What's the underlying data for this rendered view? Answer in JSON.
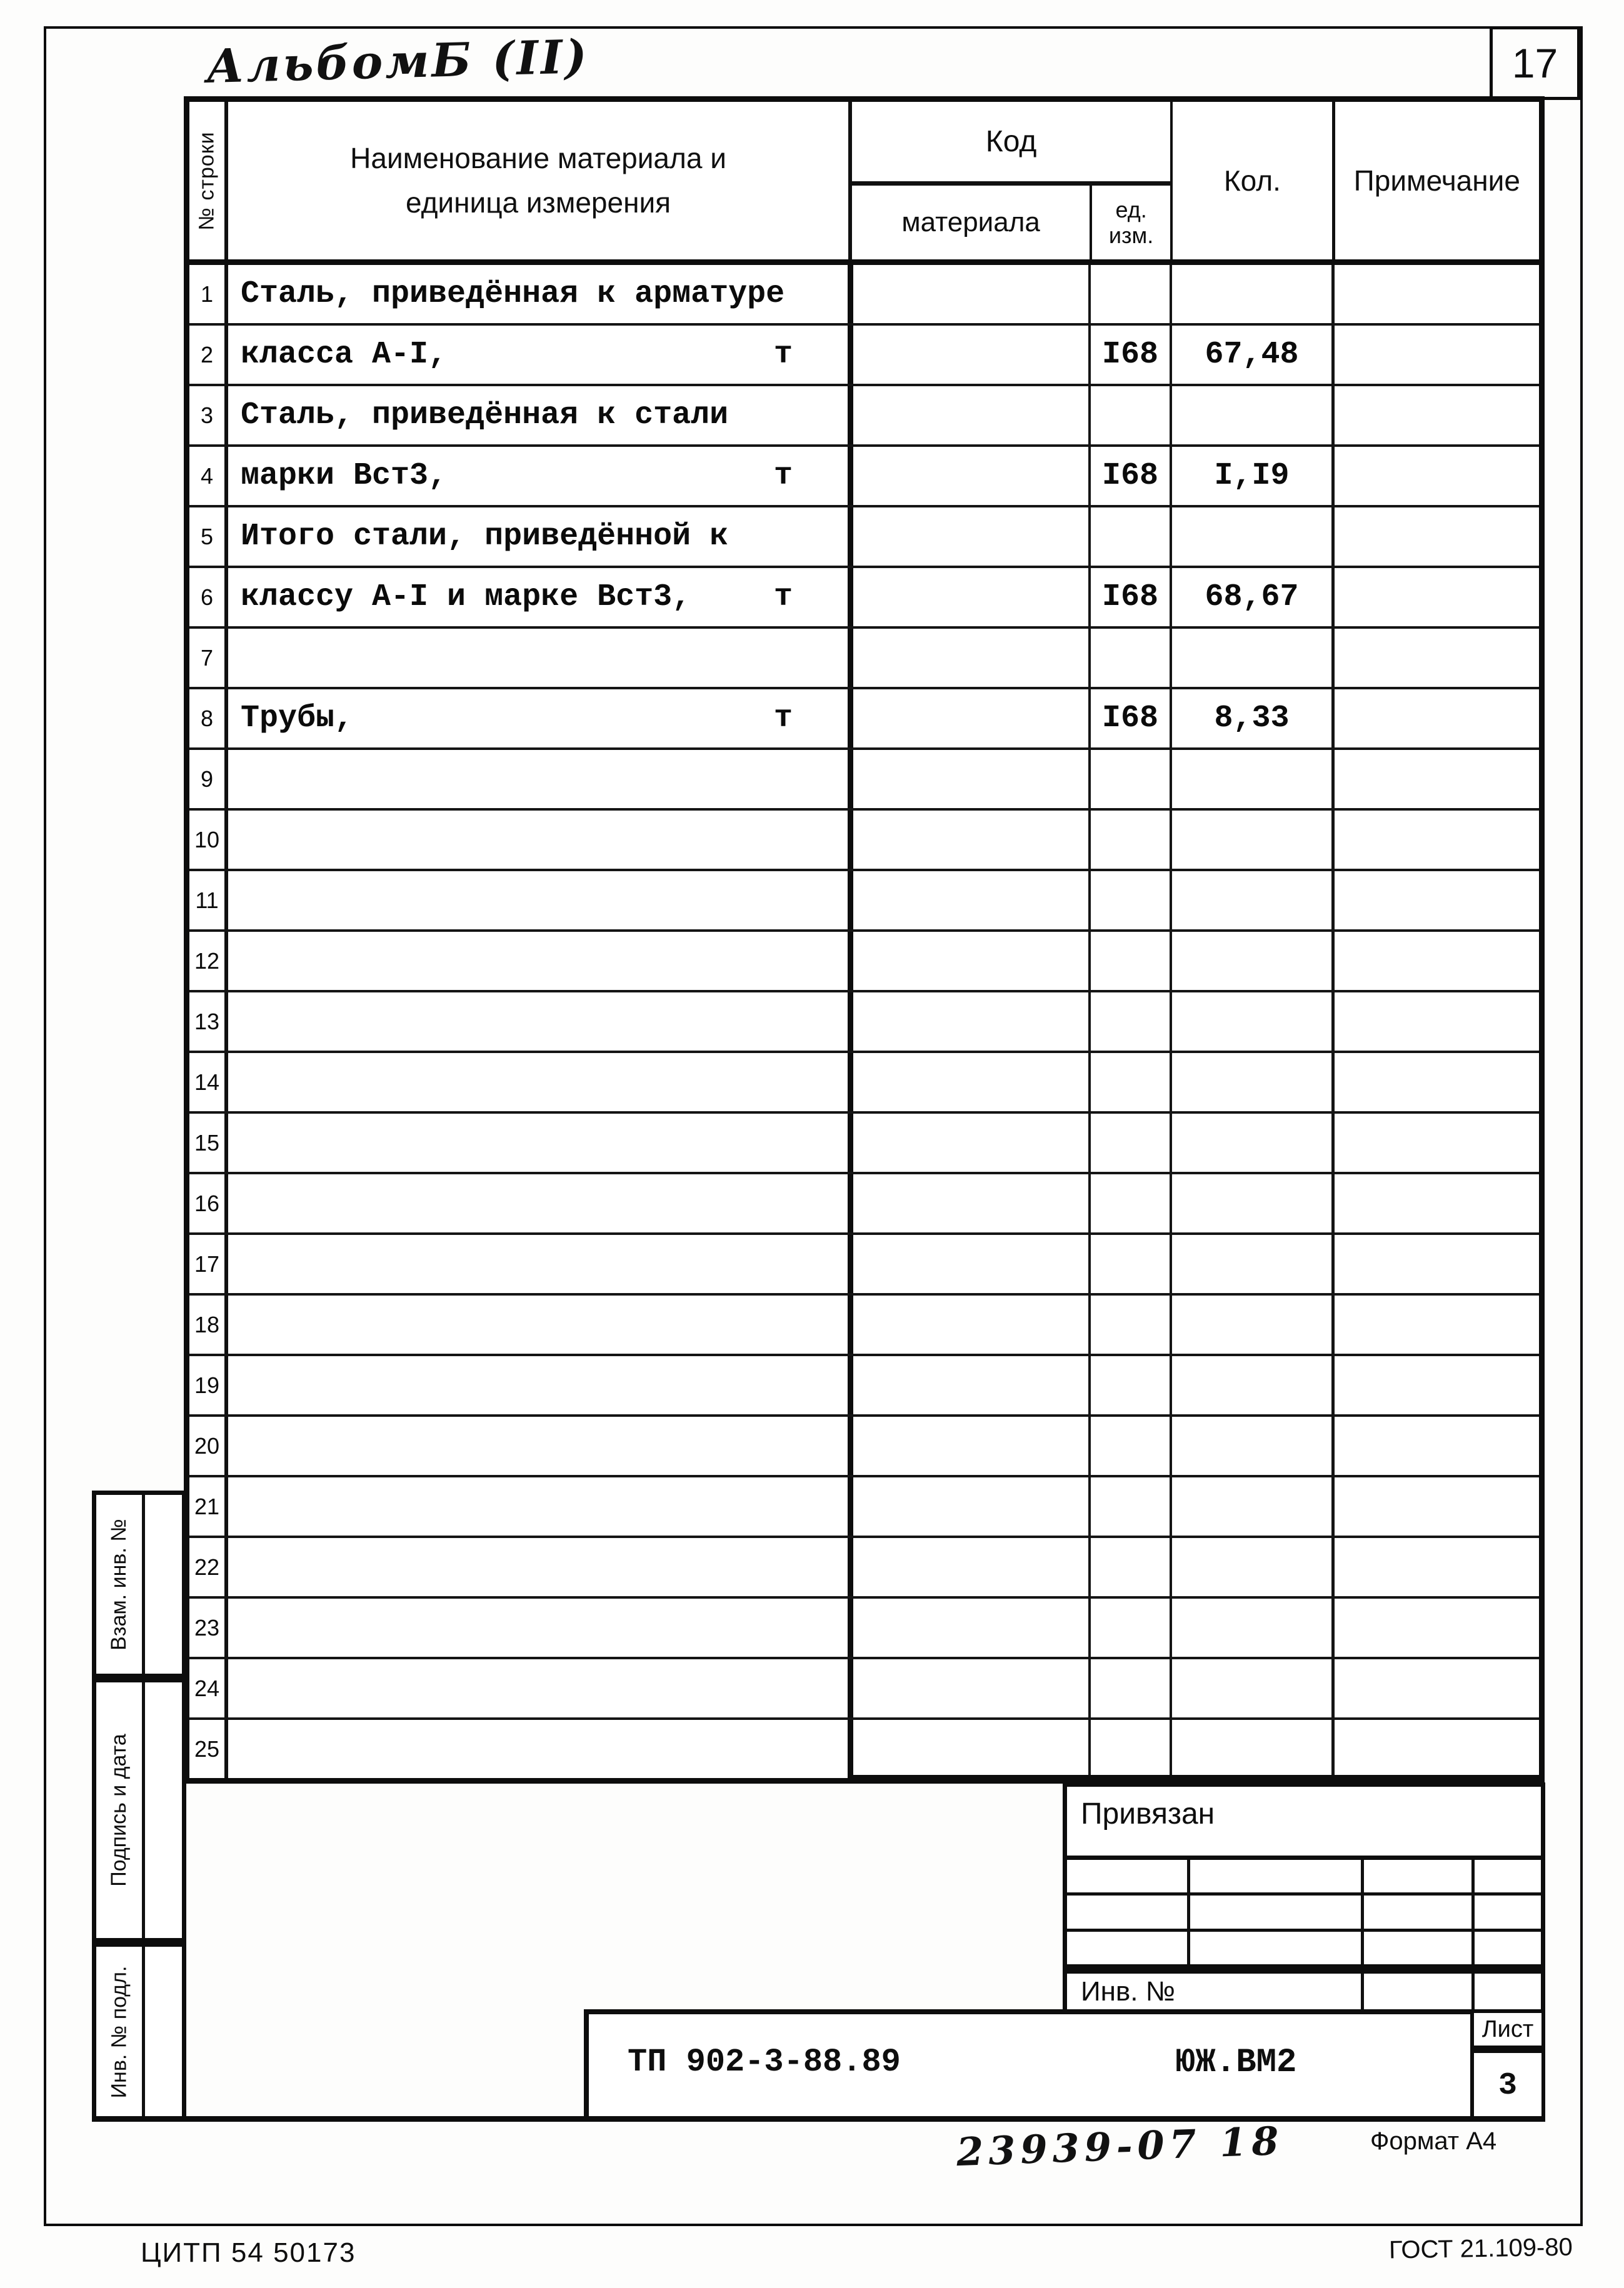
{
  "page": {
    "album_title": "АльбомБ (II)",
    "page_number": "17",
    "handwritten_code": "23939-07 18",
    "format_label": "Формат А4",
    "footer_left": "ЦИТП 54 50173",
    "footer_right": "ГОСТ 21.109-80"
  },
  "table": {
    "header": {
      "row_no": "№ строки",
      "name_line1": "Наименование материала  и",
      "name_line2": "единица измерения",
      "code": "Код",
      "code_material": "материала",
      "code_unit_line1": "ед.",
      "code_unit_line2": "изм.",
      "qty": "Кол.",
      "note": "Примечание"
    },
    "rows": [
      {
        "num": "1",
        "name": "Сталь, приведённая к арматуре",
        "unit": "",
        "material_code": "",
        "unit_code": "",
        "qty": "",
        "note": ""
      },
      {
        "num": "2",
        "name": "класса А-I,",
        "unit": "т",
        "material_code": "",
        "unit_code": "I68",
        "qty": "67,48",
        "note": ""
      },
      {
        "num": "3",
        "name": "Сталь, приведённая к стали",
        "unit": "",
        "material_code": "",
        "unit_code": "",
        "qty": "",
        "note": ""
      },
      {
        "num": "4",
        "name": "марки Вст3,",
        "unit": "т",
        "material_code": "",
        "unit_code": "I68",
        "qty": "I,I9",
        "note": ""
      },
      {
        "num": "5",
        "name": "Итого стали, приведённой к",
        "unit": "",
        "material_code": "",
        "unit_code": "",
        "qty": "",
        "note": ""
      },
      {
        "num": "6",
        "name": "классу А-I и марке Вст3,",
        "unit": "т",
        "material_code": "",
        "unit_code": "I68",
        "qty": "68,67",
        "note": ""
      },
      {
        "num": "7",
        "name": "",
        "unit": "",
        "material_code": "",
        "unit_code": "",
        "qty": "",
        "note": ""
      },
      {
        "num": "8",
        "name": "Трубы,",
        "unit": "т",
        "material_code": "",
        "unit_code": "I68",
        "qty": "8,33",
        "note": ""
      },
      {
        "num": "9",
        "name": "",
        "unit": "",
        "material_code": "",
        "unit_code": "",
        "qty": "",
        "note": ""
      },
      {
        "num": "10",
        "name": "",
        "unit": "",
        "material_code": "",
        "unit_code": "",
        "qty": "",
        "note": ""
      },
      {
        "num": "11",
        "name": "",
        "unit": "",
        "material_code": "",
        "unit_code": "",
        "qty": "",
        "note": ""
      },
      {
        "num": "12",
        "name": "",
        "unit": "",
        "material_code": "",
        "unit_code": "",
        "qty": "",
        "note": ""
      },
      {
        "num": "13",
        "name": "",
        "unit": "",
        "material_code": "",
        "unit_code": "",
        "qty": "",
        "note": ""
      },
      {
        "num": "14",
        "name": "",
        "unit": "",
        "material_code": "",
        "unit_code": "",
        "qty": "",
        "note": ""
      },
      {
        "num": "15",
        "name": "",
        "unit": "",
        "material_code": "",
        "unit_code": "",
        "qty": "",
        "note": ""
      },
      {
        "num": "16",
        "name": "",
        "unit": "",
        "material_code": "",
        "unit_code": "",
        "qty": "",
        "note": ""
      },
      {
        "num": "17",
        "name": "",
        "unit": "",
        "material_code": "",
        "unit_code": "",
        "qty": "",
        "note": ""
      },
      {
        "num": "18",
        "name": "",
        "unit": "",
        "material_code": "",
        "unit_code": "",
        "qty": "",
        "note": ""
      },
      {
        "num": "19",
        "name": "",
        "unit": "",
        "material_code": "",
        "unit_code": "",
        "qty": "",
        "note": ""
      },
      {
        "num": "20",
        "name": "",
        "unit": "",
        "material_code": "",
        "unit_code": "",
        "qty": "",
        "note": ""
      },
      {
        "num": "21",
        "name": "",
        "unit": "",
        "material_code": "",
        "unit_code": "",
        "qty": "",
        "note": ""
      },
      {
        "num": "22",
        "name": "",
        "unit": "",
        "material_code": "",
        "unit_code": "",
        "qty": "",
        "note": ""
      },
      {
        "num": "23",
        "name": "",
        "unit": "",
        "material_code": "",
        "unit_code": "",
        "qty": "",
        "note": ""
      },
      {
        "num": "24",
        "name": "",
        "unit": "",
        "material_code": "",
        "unit_code": "",
        "qty": "",
        "note": ""
      },
      {
        "num": "25",
        "name": "",
        "unit": "",
        "material_code": "",
        "unit_code": "",
        "qty": "",
        "note": ""
      }
    ]
  },
  "sidebar": {
    "labels": [
      "Взам. инв. №",
      "Подпись и дата",
      "Инв. № подл."
    ]
  },
  "title_block": {
    "top_label": "Привязан",
    "inv_label": "Инв.  №",
    "doc_code": "ТП  902-3-88.89",
    "doc_mark": "ЮЖ.ВМ2",
    "sheet_label": "Лист",
    "sheet_number": "3"
  }
}
